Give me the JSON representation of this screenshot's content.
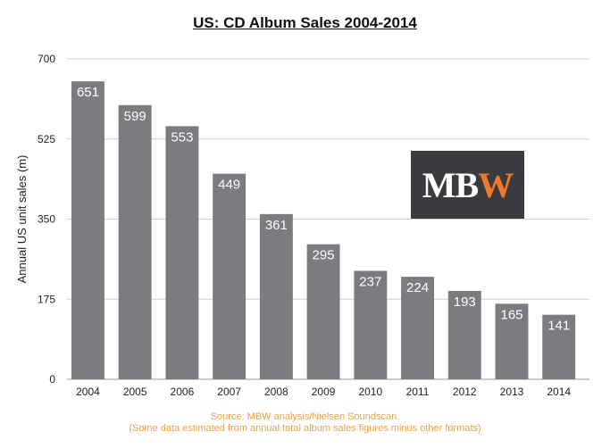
{
  "chart_data": {
    "type": "bar",
    "title": "US: CD Album Sales 2004-2014",
    "xlabel": "",
    "ylabel": "Annual US unit sales (m)",
    "categories": [
      "2004",
      "2005",
      "2006",
      "2007",
      "2008",
      "2009",
      "2010",
      "2011",
      "2012",
      "2013",
      "2014"
    ],
    "values": [
      651,
      599,
      553,
      449,
      361,
      295,
      237,
      224,
      193,
      165,
      141
    ],
    "ylim": [
      0,
      700
    ],
    "yticks": [
      0,
      175,
      350,
      525,
      700
    ],
    "grid": true,
    "bar_color": "#7b7b80"
  },
  "logo": {
    "part1": "MB",
    "part2": "W"
  },
  "footer": {
    "line1": "Source: MBW analysis/Nielsen Soundscan.",
    "line2": "(Some data estimated from annual total album sales figures minus other formats)"
  }
}
